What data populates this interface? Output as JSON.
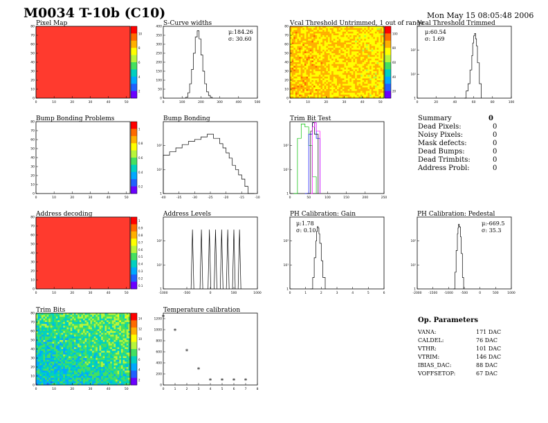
{
  "header": {
    "title": "M0034 T-10b (C10)",
    "date": "Mon May 15 08:05:48 2006"
  },
  "colors": {
    "map_fill": "#ff3a2e",
    "palette": [
      "#ff0000",
      "#ff6a00",
      "#ffb000",
      "#ffff00",
      "#b8f53a",
      "#44e060",
      "#00d0c0",
      "#00a8ff",
      "#2060ff",
      "#6a00ff"
    ]
  },
  "panels": {
    "pixel_map": {
      "title": "Pixel Map"
    },
    "scurve": {
      "title": "S-Curve widths",
      "stat_mu": "μ:184.26",
      "stat_sigma": "σ: 30.60"
    },
    "vcal_untrimmed": {
      "title": "Vcal Threshold Untrimmed, 1 out of range"
    },
    "vcal_trimmed": {
      "title": "Vcal Threshold Trimmed",
      "stat_mu": "μ:60.54",
      "stat_sigma": "σ: 1.69"
    },
    "bump_problems": {
      "title": "Bump Bonding Problems"
    },
    "bump_bonding": {
      "title": "Bump Bonding"
    },
    "trim_bit_test": {
      "title": "Trim Bit Test"
    },
    "address_decoding": {
      "title": "Address decoding"
    },
    "address_levels": {
      "title": "Address Levels"
    },
    "ph_gain": {
      "title": "PH Calibration: Gain",
      "stat_mu": "μ:1.78",
      "stat_sigma": "σ: 0.10"
    },
    "ph_pedestal": {
      "title": "PH Calibration: Pedestal",
      "stat_mu": "μ:-669.5",
      "stat_sigma": "σ: 35.3"
    },
    "trim_bits": {
      "title": "Trim Bits"
    },
    "temperature": {
      "title": "Temperature calibration"
    }
  },
  "summary": {
    "title": "Summary",
    "total": "0",
    "rows": [
      {
        "label": "Dead Pixels:",
        "value": "0"
      },
      {
        "label": "Noisy Pixels:",
        "value": "0"
      },
      {
        "label": "Mask defects:",
        "value": "0"
      },
      {
        "label": "Dead Bumps:",
        "value": "0"
      },
      {
        "label": "Dead Trimbits:",
        "value": "0"
      },
      {
        "label": "Address Probl:",
        "value": "0"
      }
    ]
  },
  "op_params": {
    "title": "Op. Parameters",
    "rows": [
      {
        "label": "VANA:",
        "value": "171 DAC"
      },
      {
        "label": "CALDEL:",
        "value": "76 DAC"
      },
      {
        "label": "VTHR:",
        "value": "101 DAC"
      },
      {
        "label": "VTRIM:",
        "value": "146 DAC"
      },
      {
        "label": "IBIAS_DAC:",
        "value": "88 DAC"
      },
      {
        "label": "VOFFSETOP:",
        "value": "67 DAC"
      }
    ]
  },
  "chart_data": [
    {
      "id": "pixel_map",
      "type": "heatmap",
      "title": "Pixel Map",
      "xlim": [
        0,
        52
      ],
      "ylim": [
        0,
        80
      ],
      "xticks": [
        0,
        10,
        20,
        30,
        40,
        50
      ],
      "yticks": [
        0,
        10,
        20,
        30,
        40,
        50,
        60,
        70,
        80
      ],
      "fill": "uniform-red",
      "zticks": [
        "10",
        "8",
        "6",
        "4",
        "2"
      ]
    },
    {
      "id": "scurve",
      "type": "line",
      "title": "S-Curve widths",
      "xlim": [
        0,
        500
      ],
      "ylim": [
        0,
        400
      ],
      "xticks": [
        0,
        100,
        200,
        300,
        400,
        500
      ],
      "yticks": [
        0,
        50,
        100,
        150,
        200,
        250,
        300,
        350,
        400
      ],
      "log": false,
      "x": [
        120,
        130,
        140,
        150,
        160,
        170,
        180,
        190,
        200,
        210,
        220,
        230,
        240,
        250,
        260
      ],
      "y": [
        5,
        30,
        80,
        160,
        250,
        340,
        375,
        330,
        240,
        150,
        80,
        35,
        15,
        5,
        0
      ]
    },
    {
      "id": "vcal_untrimmed",
      "type": "heatmap",
      "title": "Vcal Threshold Untrimmed, 1 out of range",
      "xlim": [
        0,
        52
      ],
      "ylim": [
        0,
        80
      ],
      "xticks": [
        0,
        10,
        20,
        30,
        40,
        50
      ],
      "yticks": [
        0,
        10,
        20,
        30,
        40,
        50,
        60,
        70,
        80
      ],
      "fill": "noisy-yellow-orange",
      "zticks": [
        "100",
        "80",
        "60",
        "40",
        "20"
      ]
    },
    {
      "id": "vcal_trimmed",
      "type": "line",
      "title": "Vcal Threshold Trimmed",
      "xlim": [
        0,
        100
      ],
      "ylim": [
        1,
        1000
      ],
      "xticks": [
        0,
        20,
        40,
        60,
        80,
        100
      ],
      "yticks": [
        1,
        10,
        100
      ],
      "log": true,
      "x": [
        50,
        52,
        54,
        56,
        58,
        59,
        60,
        61,
        62,
        63,
        64,
        66,
        68
      ],
      "y": [
        1,
        2,
        4,
        15,
        60,
        200,
        400,
        500,
        300,
        150,
        30,
        4,
        1
      ]
    },
    {
      "id": "bump_problems",
      "type": "heatmap",
      "title": "Bump Bonding Problems",
      "xlim": [
        0,
        52
      ],
      "ylim": [
        0,
        80
      ],
      "xticks": [
        0,
        10,
        20,
        30,
        40,
        50
      ],
      "yticks": [
        0,
        10,
        20,
        30,
        40,
        50,
        60,
        70,
        80
      ],
      "fill": "empty",
      "zticks": [
        "1",
        "0.8",
        "0.6",
        "0.4",
        "0.2"
      ]
    },
    {
      "id": "bump_bonding",
      "type": "line",
      "title": "Bump Bonding",
      "xlim": [
        -40,
        -10
      ],
      "ylim": [
        1,
        1000
      ],
      "xticks": [
        -40,
        -35,
        -30,
        -25,
        -20,
        -15,
        -10
      ],
      "yticks": [
        1,
        10,
        100
      ],
      "log": true,
      "x": [
        -40,
        -38,
        -36,
        -34,
        -32,
        -30,
        -28,
        -26,
        -24,
        -22,
        -21,
        -20,
        -19,
        -18,
        -17,
        -16,
        -15,
        -14,
        -13,
        -12,
        -11
      ],
      "y": [
        40,
        55,
        80,
        110,
        150,
        180,
        230,
        300,
        200,
        120,
        80,
        50,
        30,
        15,
        10,
        6,
        4,
        2,
        1,
        1,
        1
      ]
    },
    {
      "id": "trim_bit_test",
      "type": "line",
      "title": "Trim Bit Test",
      "xlim": [
        0,
        250
      ],
      "ylim": [
        1,
        1000
      ],
      "xticks": [
        0,
        50,
        100,
        150,
        200,
        250
      ],
      "yticks": [
        1,
        10,
        100
      ],
      "log": true,
      "series": [
        {
          "color": "#00c000",
          "x": [
            10,
            20,
            30,
            40,
            50,
            60,
            70
          ],
          "y": [
            1,
            200,
            800,
            600,
            100,
            5,
            1
          ]
        },
        {
          "color": "#0000ff",
          "x": [
            40,
            50,
            60,
            70,
            80
          ],
          "y": [
            1,
            300,
            900,
            200,
            1
          ]
        },
        {
          "color": "#000000",
          "x": [
            45,
            55,
            60,
            65,
            75
          ],
          "y": [
            1,
            400,
            900,
            300,
            1
          ]
        },
        {
          "color": "#ff00ff",
          "x": [
            55,
            60,
            65,
            70,
            80
          ],
          "y": [
            1,
            600,
            900,
            400,
            1
          ]
        }
      ]
    },
    {
      "id": "address_decoding",
      "type": "heatmap",
      "title": "Address decoding",
      "xlim": [
        0,
        52
      ],
      "ylim": [
        0,
        80
      ],
      "xticks": [
        0,
        10,
        20,
        30,
        40,
        50
      ],
      "yticks": [
        0,
        10,
        20,
        30,
        40,
        50,
        60,
        70,
        80
      ],
      "fill": "uniform-red",
      "zticks": [
        "1",
        "0.9",
        "0.8",
        "0.7",
        "0.6",
        "0.5",
        "0.4",
        "0.3",
        "0.2",
        "0.1"
      ]
    },
    {
      "id": "address_levels",
      "type": "line",
      "title": "Address Levels",
      "xlim": [
        -1000,
        1000
      ],
      "ylim": [
        1,
        1000
      ],
      "xticks": [
        -1000,
        -500,
        0,
        500,
        1000
      ],
      "yticks": [
        1,
        10,
        100
      ],
      "log": true,
      "peaks": [
        -380,
        -190,
        -20,
        110,
        240,
        370,
        500,
        620
      ],
      "peak_height": 300
    },
    {
      "id": "ph_gain",
      "type": "line",
      "title": "PH Calibration: Gain",
      "xlim": [
        0,
        6
      ],
      "ylim": [
        1,
        1000
      ],
      "xticks": [
        0,
        1,
        2,
        3,
        4,
        5,
        6
      ],
      "yticks": [
        1,
        10,
        100
      ],
      "log": true,
      "x": [
        1.3,
        1.45,
        1.55,
        1.65,
        1.7,
        1.75,
        1.8,
        1.85,
        1.9,
        2.0,
        2.1,
        2.25
      ],
      "y": [
        1,
        3,
        20,
        100,
        250,
        400,
        350,
        200,
        80,
        15,
        3,
        1
      ]
    },
    {
      "id": "ph_pedestal",
      "type": "line",
      "title": "PH Calibration: Pedestal",
      "xlim": [
        -2000,
        1000
      ],
      "ylim": [
        1,
        1000
      ],
      "xticks": [
        -2000,
        -1500,
        -1000,
        -500,
        0,
        500,
        1000
      ],
      "yticks": [
        1,
        10,
        100
      ],
      "log": true,
      "x": [
        -850,
        -800,
        -760,
        -720,
        -700,
        -680,
        -660,
        -640,
        -620,
        -600,
        -560,
        -520
      ],
      "y": [
        1,
        5,
        40,
        200,
        350,
        500,
        400,
        380,
        150,
        30,
        3,
        1
      ]
    },
    {
      "id": "trim_bits",
      "type": "heatmap",
      "title": "Trim Bits",
      "xlim": [
        0,
        52
      ],
      "ylim": [
        0,
        80
      ],
      "xticks": [
        0,
        10,
        20,
        30,
        40,
        50
      ],
      "yticks": [
        0,
        10,
        20,
        30,
        40,
        50,
        60,
        70,
        80
      ],
      "fill": "noisy-green",
      "zticks": [
        "14",
        "12",
        "10",
        "8",
        "6",
        "4",
        "2"
      ]
    },
    {
      "id": "temperature",
      "type": "scatter",
      "title": "Temperature calibration",
      "xlim": [
        0,
        8
      ],
      "ylim": [
        0,
        1300
      ],
      "xticks": [
        0,
        1,
        2,
        3,
        4,
        5,
        6,
        7,
        8
      ],
      "yticks": [
        0,
        200,
        400,
        600,
        800,
        1000,
        1200
      ],
      "log": false,
      "x": [
        0,
        1,
        2,
        3,
        4,
        5,
        6,
        7
      ],
      "y": [
        1230,
        980,
        610,
        280,
        80,
        80,
        80,
        80
      ]
    }
  ]
}
